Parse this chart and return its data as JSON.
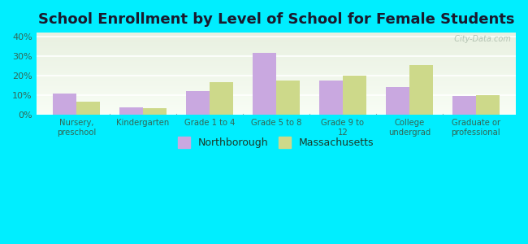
{
  "title": "School Enrollment by Level of School for Female Students",
  "categories": [
    "Nursery,\npreschool",
    "Kindergarten",
    "Grade 1 to 4",
    "Grade 5 to 8",
    "Grade 9 to\n12",
    "College\nundergrad",
    "Graduate or\nprofessional"
  ],
  "northborough": [
    11.0,
    4.0,
    12.0,
    31.5,
    17.5,
    14.0,
    9.5
  ],
  "massachusetts": [
    6.5,
    3.5,
    16.5,
    17.5,
    20.0,
    25.5,
    10.0
  ],
  "northborough_color": "#c9a8e0",
  "massachusetts_color": "#cdd98a",
  "background_color": "#00EEFF",
  "plot_bg_top": "#e8f0e0",
  "plot_bg_bottom": "#f8fdf5",
  "ylim": [
    0,
    42
  ],
  "yticks": [
    0,
    10,
    20,
    30,
    40
  ],
  "ytick_labels": [
    "0%",
    "10%",
    "20%",
    "30%",
    "40%"
  ],
  "bar_width": 0.35,
  "title_fontsize": 13,
  "watermark": "  City-Data.com"
}
